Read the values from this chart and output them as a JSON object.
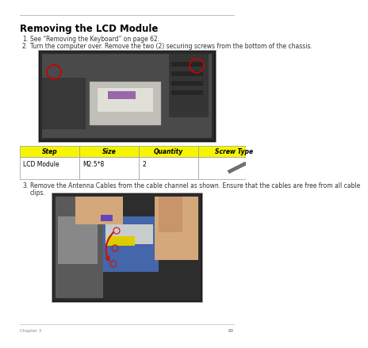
{
  "title": "Removing the LCD Module",
  "step1": "See “Removing the Keyboard” on page 62.",
  "step2": "Turn the computer over. Remove the two (2) securing screws from the bottom of the chassis.",
  "step3_line1": "Remove the Antenna Cables from the cable channel as shown. Ensure that the cables are free from all cable",
  "step3_line2": "clips.",
  "table_headers": [
    "Step",
    "Size",
    "Quantity",
    "Screw Type"
  ],
  "table_row": [
    "LCD Module",
    "M2.5*8",
    "2",
    ""
  ],
  "header_bg": "#f5f500",
  "header_text": "#000000",
  "row_bg": "#ffffff",
  "table_border": "#999999",
  "page_number": "63",
  "footer_left": "Chapter 3",
  "background": "#ffffff",
  "line_color": "#bbbbbb",
  "title_color": "#000000",
  "text_color": "#333333"
}
